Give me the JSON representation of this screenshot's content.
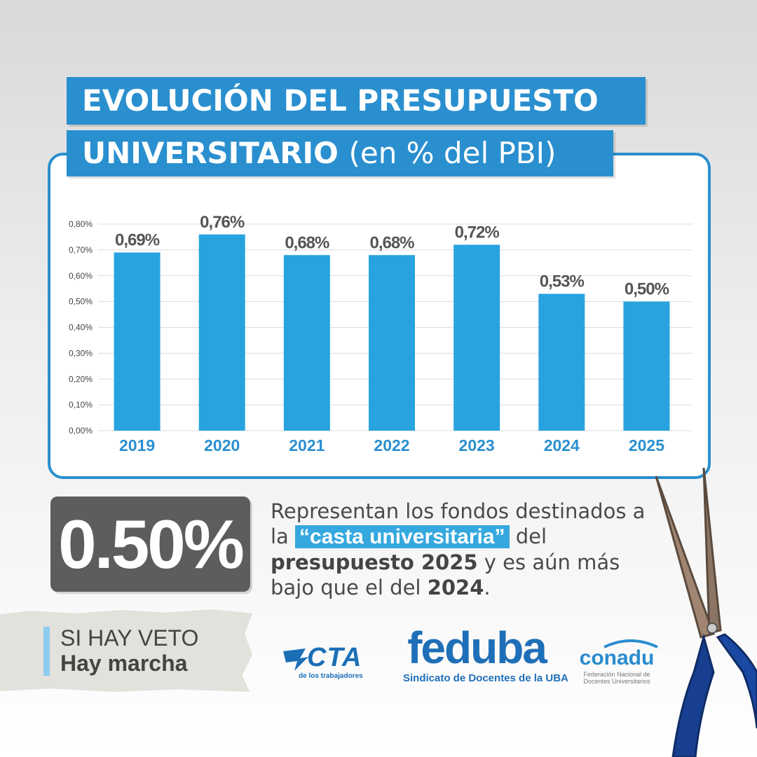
{
  "title": {
    "line1": "EVOLUCIÓN DEL PRESUPUESTO",
    "line2_bold": "UNIVERSITARIO",
    "line2_light": "(en % del PBI)"
  },
  "chart_data": {
    "type": "bar",
    "categories": [
      "2019",
      "2020",
      "2021",
      "2022",
      "2023",
      "2024",
      "2025"
    ],
    "values": [
      0.69,
      0.76,
      0.68,
      0.68,
      0.72,
      0.53,
      0.5
    ],
    "data_labels": [
      "0,69%",
      "0,76%",
      "0,68%",
      "0,68%",
      "0,72%",
      "0,53%",
      "0,50%"
    ],
    "y_ticks": [
      "0,00%",
      "0,10%",
      "0,20%",
      "0,30%",
      "0,40%",
      "0,50%",
      "0,60%",
      "0,70%",
      "0,80%"
    ],
    "ylim": [
      0,
      0.8
    ],
    "unit": "%",
    "grid": true,
    "colors": {
      "bar": "#29a3e0",
      "category_label": "#2a8fcf",
      "data_label": "#555555"
    }
  },
  "stat": {
    "value": "0.50%"
  },
  "description": {
    "part1": "Representan los fondos destinados a la ",
    "highlight": "“casta universitaria”",
    "part2": " del ",
    "bold1": "presupuesto 2025",
    "part3": " y es aún más bajo que el del ",
    "bold2": "2024",
    "part4": "."
  },
  "veto": {
    "line1": "SI HAY VETO",
    "line2": "Hay marcha"
  },
  "logos": {
    "cta": {
      "name": "CTA",
      "subtitle": "de los trabajadores"
    },
    "feduba": {
      "name": "feduba",
      "subtitle": "Sindicato de Docentes de la UBA"
    },
    "conadu": {
      "name": "conadu",
      "subtitle_line1": "Federación Nacional de",
      "subtitle_line2": "Docentes Universitarios"
    }
  },
  "colors": {
    "accent": "#2a8fcf",
    "stat_box": "#5d5d5d",
    "highlight": "#35a8df"
  }
}
